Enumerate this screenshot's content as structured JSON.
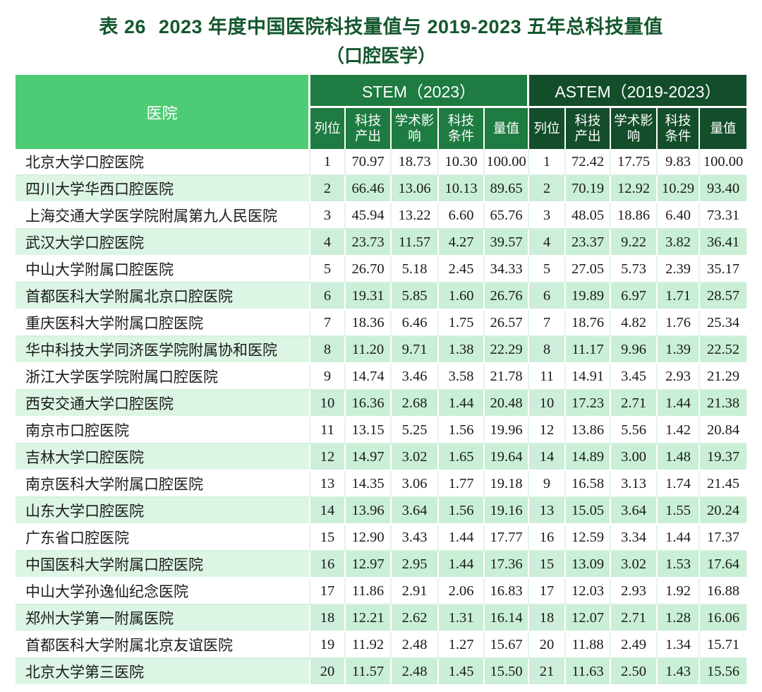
{
  "title": {
    "label": "表 26",
    "line1": "2023 年度中国医院科技量值与 2019-2023 五年总科技量值",
    "line2": "（口腔医学）"
  },
  "table": {
    "hospital_header": "医院",
    "groups": [
      {
        "label": "STEM（2023）"
      },
      {
        "label": "ASTEM（2019-2023）"
      }
    ],
    "sub_headers": [
      "列位",
      "科技产出",
      "学术影响",
      "科技条件",
      "量值"
    ],
    "rows": [
      {
        "hospital": "北京大学口腔医院",
        "stem": [
          "1",
          "70.97",
          "18.73",
          "10.30",
          "100.00"
        ],
        "astem": [
          "1",
          "72.42",
          "17.75",
          "9.83",
          "100.00"
        ]
      },
      {
        "hospital": "四川大学华西口腔医院",
        "stem": [
          "2",
          "66.46",
          "13.06",
          "10.13",
          "89.65"
        ],
        "astem": [
          "2",
          "70.19",
          "12.92",
          "10.29",
          "93.40"
        ]
      },
      {
        "hospital": "上海交通大学医学院附属第九人民医院",
        "stem": [
          "3",
          "45.94",
          "13.22",
          "6.60",
          "65.76"
        ],
        "astem": [
          "3",
          "48.05",
          "18.86",
          "6.40",
          "73.31"
        ]
      },
      {
        "hospital": "武汉大学口腔医院",
        "stem": [
          "4",
          "23.73",
          "11.57",
          "4.27",
          "39.57"
        ],
        "astem": [
          "4",
          "23.37",
          "9.22",
          "3.82",
          "36.41"
        ]
      },
      {
        "hospital": "中山大学附属口腔医院",
        "stem": [
          "5",
          "26.70",
          "5.18",
          "2.45",
          "34.33"
        ],
        "astem": [
          "5",
          "27.05",
          "5.73",
          "2.39",
          "35.17"
        ]
      },
      {
        "hospital": "首都医科大学附属北京口腔医院",
        "stem": [
          "6",
          "19.31",
          "5.85",
          "1.60",
          "26.76"
        ],
        "astem": [
          "6",
          "19.89",
          "6.97",
          "1.71",
          "28.57"
        ]
      },
      {
        "hospital": "重庆医科大学附属口腔医院",
        "stem": [
          "7",
          "18.36",
          "6.46",
          "1.75",
          "26.57"
        ],
        "astem": [
          "7",
          "18.76",
          "4.82",
          "1.76",
          "25.34"
        ]
      },
      {
        "hospital": "华中科技大学同济医学院附属协和医院",
        "stem": [
          "8",
          "11.20",
          "9.71",
          "1.38",
          "22.29"
        ],
        "astem": [
          "8",
          "11.17",
          "9.96",
          "1.39",
          "22.52"
        ]
      },
      {
        "hospital": "浙江大学医学院附属口腔医院",
        "stem": [
          "9",
          "14.74",
          "3.46",
          "3.58",
          "21.78"
        ],
        "astem": [
          "11",
          "14.91",
          "3.45",
          "2.93",
          "21.29"
        ]
      },
      {
        "hospital": "西安交通大学口腔医院",
        "stem": [
          "10",
          "16.36",
          "2.68",
          "1.44",
          "20.48"
        ],
        "astem": [
          "10",
          "17.23",
          "2.71",
          "1.44",
          "21.38"
        ]
      },
      {
        "hospital": "南京市口腔医院",
        "stem": [
          "11",
          "13.15",
          "5.25",
          "1.56",
          "19.96"
        ],
        "astem": [
          "12",
          "13.86",
          "5.56",
          "1.42",
          "20.84"
        ]
      },
      {
        "hospital": "吉林大学口腔医院",
        "stem": [
          "12",
          "14.97",
          "3.02",
          "1.65",
          "19.64"
        ],
        "astem": [
          "14",
          "14.89",
          "3.00",
          "1.48",
          "19.37"
        ]
      },
      {
        "hospital": "南京医科大学附属口腔医院",
        "stem": [
          "13",
          "14.35",
          "3.06",
          "1.77",
          "19.18"
        ],
        "astem": [
          "9",
          "16.58",
          "3.13",
          "1.74",
          "21.45"
        ]
      },
      {
        "hospital": "山东大学口腔医院",
        "stem": [
          "14",
          "13.96",
          "3.64",
          "1.56",
          "19.16"
        ],
        "astem": [
          "13",
          "15.05",
          "3.64",
          "1.55",
          "20.24"
        ]
      },
      {
        "hospital": "广东省口腔医院",
        "stem": [
          "15",
          "12.90",
          "3.43",
          "1.44",
          "17.77"
        ],
        "astem": [
          "16",
          "12.59",
          "3.34",
          "1.44",
          "17.37"
        ]
      },
      {
        "hospital": "中国医科大学附属口腔医院",
        "stem": [
          "16",
          "12.97",
          "2.95",
          "1.44",
          "17.36"
        ],
        "astem": [
          "15",
          "13.09",
          "3.02",
          "1.53",
          "17.64"
        ]
      },
      {
        "hospital": "中山大学孙逸仙纪念医院",
        "stem": [
          "17",
          "11.86",
          "2.91",
          "2.06",
          "16.83"
        ],
        "astem": [
          "17",
          "12.03",
          "2.93",
          "1.92",
          "16.88"
        ]
      },
      {
        "hospital": "郑州大学第一附属医院",
        "stem": [
          "18",
          "12.21",
          "2.62",
          "1.31",
          "16.14"
        ],
        "astem": [
          "18",
          "12.07",
          "2.71",
          "1.28",
          "16.06"
        ]
      },
      {
        "hospital": "首都医科大学附属北京友谊医院",
        "stem": [
          "19",
          "11.92",
          "2.48",
          "1.27",
          "15.67"
        ],
        "astem": [
          "20",
          "11.88",
          "2.49",
          "1.34",
          "15.71"
        ]
      },
      {
        "hospital": "北京大学第三医院",
        "stem": [
          "20",
          "11.57",
          "2.48",
          "1.45",
          "15.50"
        ],
        "astem": [
          "21",
          "11.63",
          "2.50",
          "1.43",
          "15.56"
        ]
      }
    ]
  },
  "colors": {
    "title_green": "#14572e",
    "hospital_header_green": "#4dcc75",
    "stem_group_green": "#1e7b41",
    "astem_group_green": "#134d2a",
    "row_green": "#c9efd6",
    "row_green_hospital": "#dcf5e4"
  }
}
